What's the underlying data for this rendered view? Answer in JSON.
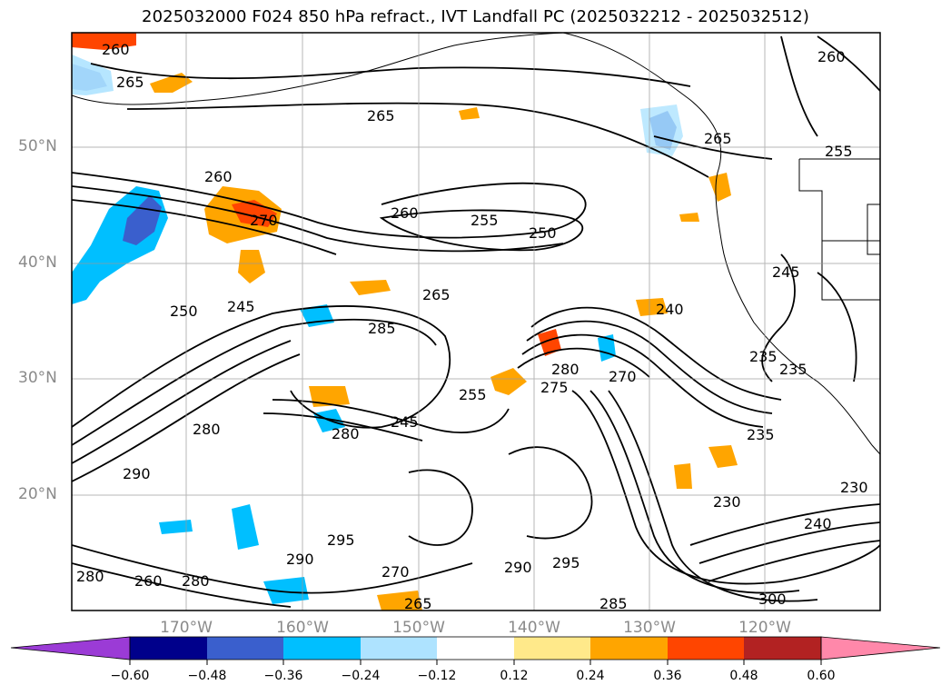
{
  "title": "2025032000 F024 850 hPa refract., IVT Landfall PC (2025032212 - 2025032512)",
  "lat_labels": [
    "50°N",
    "40°N",
    "30°N",
    "20°N"
  ],
  "lon_labels": [
    "170°W",
    "160°W",
    "150°W",
    "140°W",
    "130°W",
    "120°W"
  ],
  "map": {
    "projection": "plate carree",
    "lon_range": [
      -180,
      -110
    ],
    "lat_range": [
      10,
      60
    ],
    "grid": true,
    "coastlines": true
  },
  "colorbar": {
    "orientation": "horizontal",
    "extend": "both",
    "ticks": [
      "−0.60",
      "−0.48",
      "−0.36",
      "−0.24",
      "−0.12",
      "0.12",
      "0.24",
      "0.36",
      "0.48",
      "0.60"
    ],
    "colors": [
      "#9b3bd6",
      "#00008b",
      "#3a5fcd",
      "#00bfff",
      "#aee3ff",
      "#ffffff",
      "#ffe98a",
      "#ffa500",
      "#ff4500",
      "#b22222",
      "#ff88aa"
    ]
  },
  "contour_labels": {
    "top_row": [
      "260",
      "265",
      "265",
      "260",
      "255",
      "265"
    ],
    "mid_row": [
      "260",
      "270",
      "260",
      "255",
      "250",
      "265",
      "240",
      "245"
    ],
    "center_row": [
      "250",
      "245",
      "285",
      "255",
      "275",
      "280",
      "270",
      "235",
      "235"
    ],
    "lower_row": [
      "280",
      "245",
      "280",
      "290",
      "230",
      "235",
      "230",
      "240"
    ],
    "bottom_row": [
      "280",
      "260",
      "280",
      "290",
      "290",
      "295",
      "285",
      "270",
      "265",
      "295",
      "300"
    ]
  }
}
